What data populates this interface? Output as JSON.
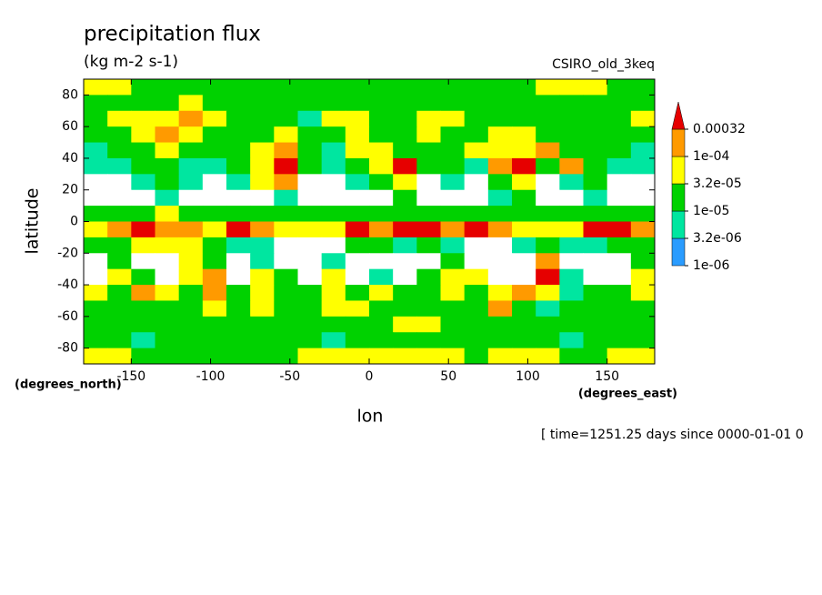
{
  "chart_data": {
    "type": "contour",
    "title": "precipitation flux",
    "subtitle": "(kg m-2 s-1)",
    "dataset": "CSIRO_old_3keq",
    "ylabel": "latitude",
    "yunits": "(degrees_north)",
    "xlabel": "lon",
    "xunits": "(degrees_east)",
    "footer": "[ time=1251.25 days since 0000-01-01 0",
    "xlim": [
      -180,
      180
    ],
    "ylim": [
      -90,
      90
    ],
    "xticks": [
      -150,
      -100,
      -50,
      0,
      50,
      100,
      150
    ],
    "yticks": [
      -80,
      -60,
      -40,
      -20,
      0,
      20,
      40,
      60,
      80
    ],
    "x": [
      -172.5,
      -157.5,
      -142.5,
      -127.5,
      -112.5,
      -97.5,
      -82.5,
      -67.5,
      -52.5,
      -37.5,
      -22.5,
      -7.5,
      7.5,
      22.5,
      37.5,
      52.5,
      67.5,
      82.5,
      97.5,
      112.5,
      127.5,
      142.5,
      157.5,
      172.5
    ],
    "y": [
      85,
      75,
      65,
      55,
      45,
      35,
      25,
      15,
      5,
      -5,
      -15,
      -25,
      -35,
      -45,
      -55,
      -65,
      -75,
      -85
    ],
    "levels": [
      {
        "value": 1e-06,
        "label": "1e-06"
      },
      {
        "value": 3.2e-06,
        "label": "3.2e-06"
      },
      {
        "value": 1e-05,
        "label": "1e-05"
      },
      {
        "value": 3.2e-05,
        "label": "3.2e-05"
      },
      {
        "value": 0.0001,
        "label": "1e-04"
      },
      0.00032
    ],
    "colors": [
      "#ffffff",
      "#2a9cff",
      "#00e6a0",
      "#00d200",
      "#ffff00",
      "#ff9a00",
      "#e60000"
    ],
    "z": [
      [
        5e-05,
        5e-05,
        2e-05,
        2e-05,
        2e-05,
        2e-05,
        2e-05,
        2e-05,
        2e-05,
        2e-05,
        2e-05,
        2e-05,
        2e-05,
        2e-05,
        2e-05,
        2e-05,
        2e-05,
        2e-05,
        2e-05,
        5e-05,
        5e-05,
        5e-05,
        2e-05,
        2e-05
      ],
      [
        2e-05,
        2e-05,
        2e-05,
        2e-05,
        5e-05,
        2e-05,
        2e-05,
        2e-05,
        2e-05,
        2e-05,
        2e-05,
        2e-05,
        2e-05,
        2e-05,
        2e-05,
        2e-05,
        2e-05,
        2e-05,
        2e-05,
        2e-05,
        2e-05,
        2e-05,
        2e-05,
        2e-05
      ],
      [
        2e-05,
        5e-05,
        5e-05,
        5e-05,
        0.0002,
        5e-05,
        2e-05,
        2e-05,
        2e-05,
        5e-06,
        5e-05,
        5e-05,
        2e-05,
        2e-05,
        5e-05,
        5e-05,
        2e-05,
        2e-05,
        2e-05,
        2e-05,
        2e-05,
        2e-05,
        2e-05,
        5e-05
      ],
      [
        2e-05,
        2e-05,
        5e-05,
        0.0002,
        5e-05,
        2e-05,
        2e-05,
        2e-05,
        5e-05,
        2e-05,
        2e-05,
        5e-05,
        2e-05,
        2e-05,
        5e-05,
        2e-05,
        2e-05,
        5e-05,
        5e-05,
        2e-05,
        2e-05,
        2e-05,
        2e-05,
        2e-05
      ],
      [
        5e-06,
        2e-05,
        2e-05,
        5e-05,
        2e-05,
        2e-05,
        2e-05,
        5e-05,
        0.0002,
        2e-05,
        5e-06,
        5e-05,
        5e-05,
        2e-05,
        2e-05,
        2e-05,
        5e-05,
        5e-05,
        5e-05,
        0.0002,
        2e-05,
        2e-05,
        2e-05,
        5e-06
      ],
      [
        5e-06,
        5e-06,
        2e-05,
        2e-05,
        5e-06,
        5e-06,
        2e-05,
        5e-05,
        0.0005,
        2e-05,
        5e-06,
        2e-05,
        5e-05,
        0.0005,
        2e-05,
        2e-05,
        5e-06,
        0.0002,
        0.0005,
        2e-05,
        0.0002,
        2e-05,
        5e-06,
        5e-06
      ],
      [
        5e-07,
        5e-07,
        5e-06,
        2e-05,
        5e-06,
        5e-07,
        5e-06,
        5e-05,
        0.0002,
        5e-07,
        5e-07,
        5e-06,
        2e-05,
        5e-05,
        5e-07,
        5e-06,
        5e-07,
        2e-05,
        5e-05,
        5e-07,
        5e-06,
        2e-05,
        5e-07,
        5e-07
      ],
      [
        5e-07,
        5e-07,
        5e-07,
        5e-06,
        5e-07,
        5e-07,
        5e-07,
        5e-07,
        5e-06,
        5e-07,
        5e-07,
        5e-07,
        5e-07,
        2e-05,
        5e-07,
        5e-07,
        5e-07,
        5e-06,
        2e-05,
        5e-07,
        5e-07,
        5e-06,
        5e-07,
        5e-07
      ],
      [
        2e-05,
        2e-05,
        2e-05,
        5e-05,
        2e-05,
        2e-05,
        2e-05,
        2e-05,
        2e-05,
        2e-05,
        2e-05,
        2e-05,
        2e-05,
        2e-05,
        2e-05,
        2e-05,
        2e-05,
        2e-05,
        2e-05,
        2e-05,
        2e-05,
        2e-05,
        2e-05,
        2e-05
      ],
      [
        5e-05,
        0.0002,
        0.0005,
        0.0002,
        0.0002,
        5e-05,
        0.0005,
        0.0002,
        5e-05,
        5e-05,
        5e-05,
        0.0005,
        0.0002,
        0.0005,
        0.0005,
        0.0002,
        0.0005,
        0.0002,
        5e-05,
        5e-05,
        5e-05,
        0.0005,
        0.0005,
        0.0002
      ],
      [
        2e-05,
        2e-05,
        5e-05,
        5e-05,
        5e-05,
        2e-05,
        5e-06,
        5e-06,
        5e-07,
        5e-07,
        5e-07,
        2e-05,
        2e-05,
        5e-06,
        2e-05,
        5e-06,
        5e-07,
        5e-07,
        5e-06,
        2e-05,
        5e-06,
        5e-06,
        2e-05,
        2e-05
      ],
      [
        5e-07,
        2e-05,
        5e-07,
        5e-07,
        5e-05,
        2e-05,
        5e-07,
        5e-06,
        5e-07,
        5e-07,
        5e-06,
        5e-07,
        5e-07,
        5e-07,
        5e-07,
        2e-05,
        5e-07,
        5e-07,
        5e-07,
        0.0002,
        5e-07,
        5e-07,
        5e-07,
        2e-05
      ],
      [
        5e-07,
        5e-05,
        2e-05,
        5e-07,
        5e-05,
        0.0002,
        5e-07,
        5e-05,
        2e-05,
        5e-07,
        5e-05,
        5e-07,
        5e-06,
        5e-07,
        2e-05,
        5e-05,
        5e-05,
        5e-07,
        5e-07,
        0.0005,
        5e-06,
        5e-07,
        5e-07,
        5e-05
      ],
      [
        5e-05,
        2e-05,
        0.0002,
        5e-05,
        2e-05,
        0.0002,
        2e-05,
        5e-05,
        2e-05,
        2e-05,
        5e-05,
        2e-05,
        5e-05,
        2e-05,
        2e-05,
        5e-05,
        2e-05,
        5e-05,
        0.0002,
        5e-05,
        5e-06,
        2e-05,
        2e-05,
        5e-05
      ],
      [
        2e-05,
        2e-05,
        2e-05,
        2e-05,
        2e-05,
        5e-05,
        2e-05,
        5e-05,
        2e-05,
        2e-05,
        5e-05,
        5e-05,
        2e-05,
        2e-05,
        2e-05,
        2e-05,
        2e-05,
        0.0002,
        2e-05,
        5e-06,
        2e-05,
        2e-05,
        2e-05,
        2e-05
      ],
      [
        2e-05,
        2e-05,
        2e-05,
        2e-05,
        2e-05,
        2e-05,
        2e-05,
        2e-05,
        2e-05,
        2e-05,
        2e-05,
        2e-05,
        2e-05,
        5e-05,
        5e-05,
        2e-05,
        2e-05,
        2e-05,
        2e-05,
        2e-05,
        2e-05,
        2e-05,
        2e-05,
        2e-05
      ],
      [
        2e-05,
        2e-05,
        5e-06,
        2e-05,
        2e-05,
        2e-05,
        2e-05,
        2e-05,
        2e-05,
        2e-05,
        5e-06,
        2e-05,
        2e-05,
        2e-05,
        2e-05,
        2e-05,
        2e-05,
        2e-05,
        2e-05,
        2e-05,
        5e-06,
        2e-05,
        2e-05,
        2e-05
      ],
      [
        5e-05,
        5e-05,
        2e-05,
        2e-05,
        2e-05,
        2e-05,
        2e-05,
        2e-05,
        2e-05,
        5e-05,
        5e-05,
        5e-05,
        5e-05,
        5e-05,
        5e-05,
        5e-05,
        2e-05,
        5e-05,
        5e-05,
        5e-05,
        2e-05,
        2e-05,
        5e-05,
        5e-05
      ]
    ]
  }
}
